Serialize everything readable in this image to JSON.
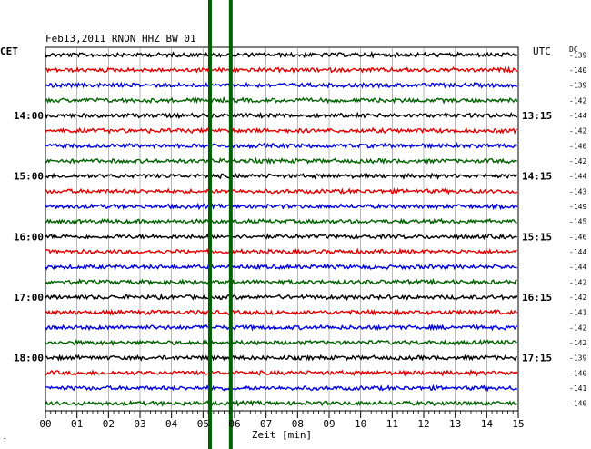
{
  "chart_data": {
    "type": "line",
    "title": "Feb13,2011  RNON HHZ BW 01",
    "left_axis_label": "CET",
    "right_axis_label": "UTC",
    "dc_label": "DC",
    "xlabel": "Zeit [min]",
    "xlim": [
      0,
      15
    ],
    "x_ticks": [
      "00",
      "01",
      "02",
      "03",
      "04",
      "05",
      "06",
      "07",
      "08",
      "09",
      "10",
      "11",
      "12",
      "13",
      "14",
      "15"
    ],
    "cet_labels": [
      {
        "row": 4,
        "text": "14:00"
      },
      {
        "row": 8,
        "text": "15:00"
      },
      {
        "row": 12,
        "text": "16:00"
      },
      {
        "row": 16,
        "text": "17:00"
      },
      {
        "row": 20,
        "text": "18:00"
      }
    ],
    "utc_labels": [
      {
        "row": 4,
        "text": "13:15"
      },
      {
        "row": 8,
        "text": "14:15"
      },
      {
        "row": 12,
        "text": "15:15"
      },
      {
        "row": 16,
        "text": "16:15"
      },
      {
        "row": 20,
        "text": "17:15"
      }
    ],
    "dc_offsets": [
      "-139",
      "-140",
      "-139",
      "-142",
      "-144",
      "-142",
      "-140",
      "-142",
      "-144",
      "-143",
      "-149",
      "-145",
      "-146",
      "-144",
      "-144",
      "-142",
      "-142",
      "-141",
      "-142",
      "-142",
      "-139",
      "-140",
      "-141",
      "-140"
    ],
    "trace_colors": [
      "#000000",
      "#e00000",
      "#0000e0",
      "#006000"
    ],
    "events": [
      {
        "x": 5.22,
        "color": "#006000"
      },
      {
        "x": 5.88,
        "color": "#006000"
      }
    ],
    "footer_mark": "↑"
  }
}
